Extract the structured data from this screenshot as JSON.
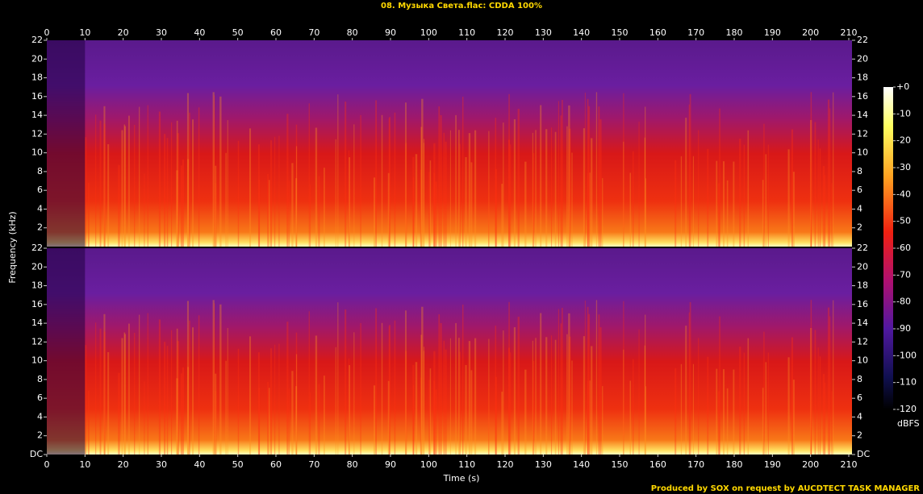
{
  "chart_data": {
    "type": "spectrogram",
    "title": "08. Музыка Света.flac: CDDA 100%",
    "xlabel": "Time (s)",
    "ylabel": "Frequency (kHz)",
    "footer": "Produced by SOX on request by AUCDTECT TASK MANAGER",
    "xlim": [
      0,
      210
    ],
    "xticks": [
      0,
      10,
      20,
      30,
      40,
      50,
      60,
      70,
      80,
      90,
      100,
      110,
      120,
      130,
      140,
      150,
      160,
      170,
      180,
      190,
      200,
      210
    ],
    "channels": [
      {
        "ylim": [
          0,
          22
        ],
        "yticks": [
          2,
          4,
          6,
          8,
          10,
          12,
          14,
          16,
          18,
          20,
          22
        ]
      },
      {
        "ylim": [
          0,
          22
        ],
        "yticks": [
          {
            "value": 0,
            "label": "DC"
          },
          2,
          4,
          6,
          8,
          10,
          12,
          14,
          16,
          18,
          20,
          22
        ]
      }
    ],
    "colorbar": {
      "label": "dBFS",
      "lim": [
        -120,
        0
      ],
      "ticks": [
        {
          "value": 0,
          "label": "+0"
        },
        -10,
        -20,
        -30,
        -40,
        -50,
        -60,
        -70,
        -80,
        -90,
        -100,
        -110,
        -120
      ]
    }
  }
}
